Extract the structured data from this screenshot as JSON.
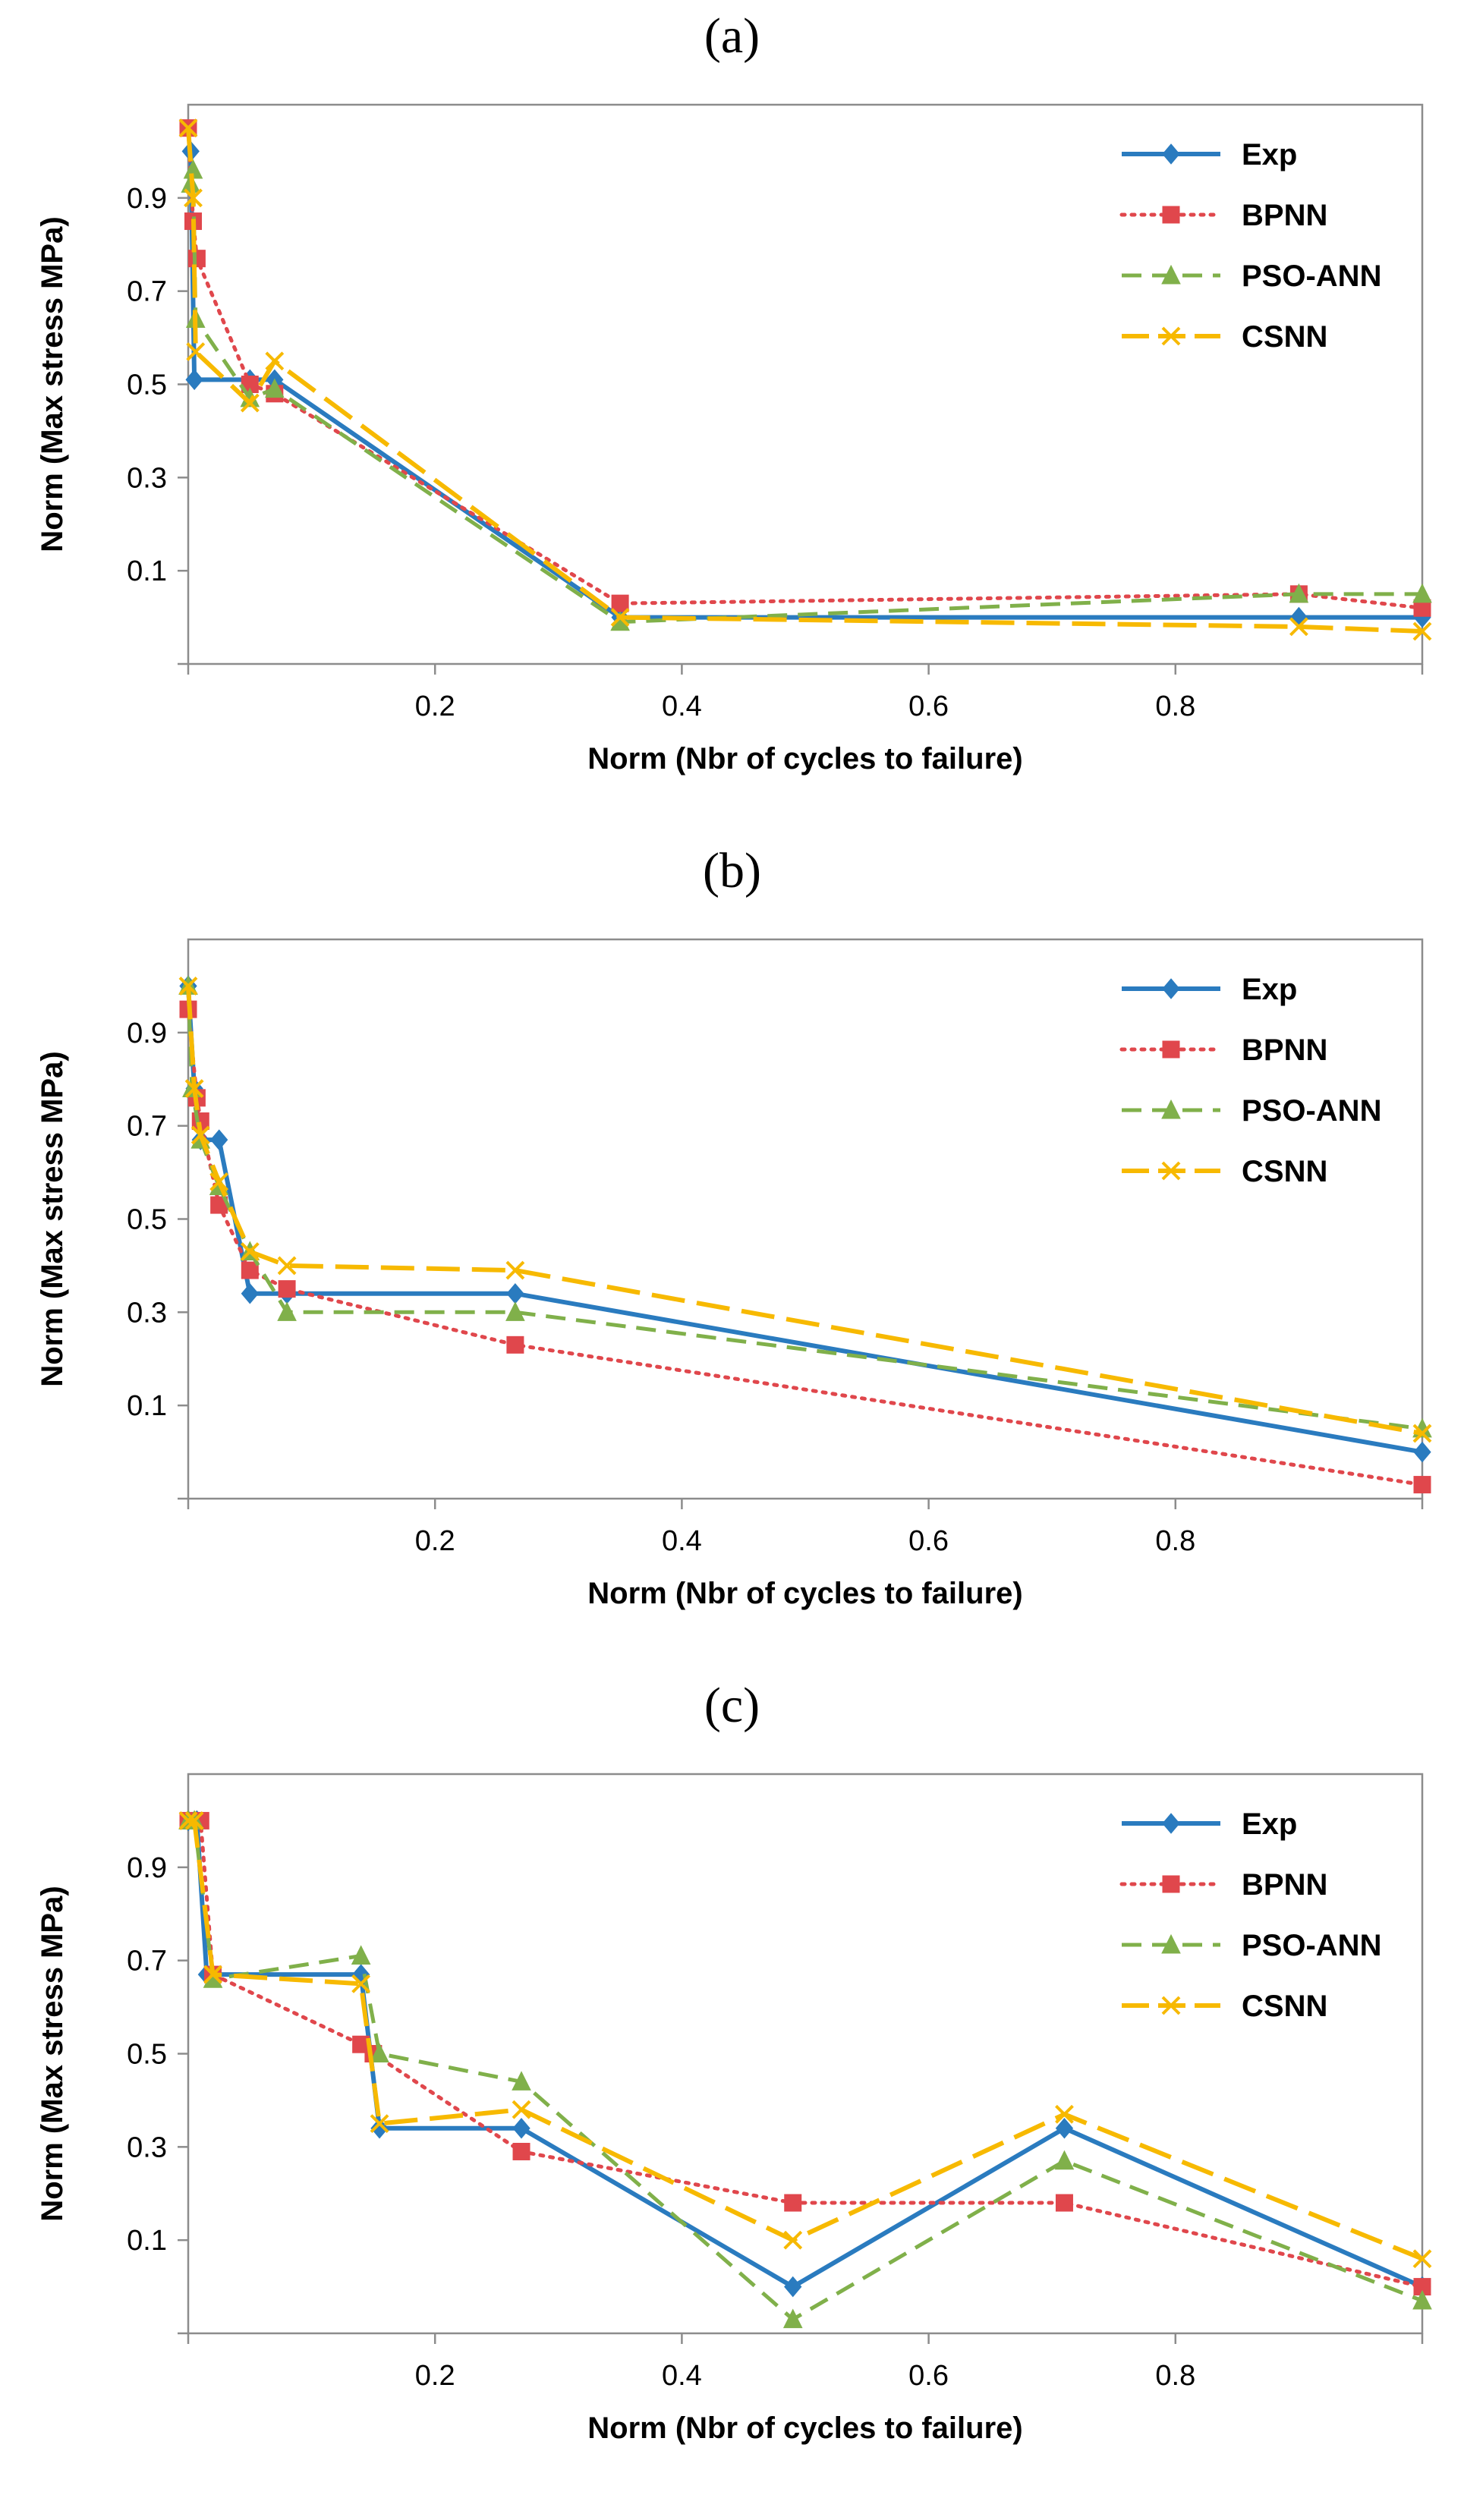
{
  "colors": {
    "Exp": "#2a7bbf",
    "BPNN": "#e0474c",
    "PSO-ANN": "#80b04a",
    "CSNN": "#f7b900"
  },
  "chart_data": [
    {
      "panel_label": "(a)",
      "type": "line",
      "xlabel": "Norm (Nbr of cycles to failure)",
      "ylabel": "Norm (Max stress MPa)",
      "xlim": [
        0,
        1
      ],
      "ylim": [
        -0.1,
        1.1
      ],
      "xticks": [
        "0.2",
        "0.4",
        "0.6",
        "0.8"
      ],
      "yticks": [
        "0.1",
        "0.3",
        "0.5",
        "0.7",
        "0.9"
      ],
      "legend_position": "top-right",
      "series": [
        {
          "name": "Exp",
          "x": [
            0.002,
            0.005,
            0.05,
            0.07,
            0.35,
            0.9,
            1.0
          ],
          "y": [
            1.0,
            0.51,
            0.51,
            0.51,
            0.0,
            0.0,
            0.0
          ]
        },
        {
          "name": "BPNN",
          "x": [
            0.0,
            0.004,
            0.007,
            0.05,
            0.07,
            0.35,
            0.9,
            1.0
          ],
          "y": [
            1.05,
            0.85,
            0.77,
            0.5,
            0.48,
            0.03,
            0.05,
            0.02
          ]
        },
        {
          "name": "PSO-ANN",
          "x": [
            0.002,
            0.004,
            0.006,
            0.05,
            0.07,
            0.35,
            0.9,
            1.0
          ],
          "y": [
            0.93,
            0.96,
            0.64,
            0.47,
            0.49,
            -0.01,
            0.05,
            0.05
          ]
        },
        {
          "name": "CSNN",
          "x": [
            0.0,
            0.004,
            0.006,
            0.05,
            0.07,
            0.35,
            0.9,
            1.0
          ],
          "y": [
            1.05,
            0.9,
            0.57,
            0.46,
            0.55,
            0.0,
            -0.02,
            -0.03
          ]
        }
      ]
    },
    {
      "panel_label": "(b)",
      "type": "line",
      "xlabel": "Norm (Nbr of cycles to failure)",
      "ylabel": "Norm (Max stress MPa)",
      "xlim": [
        0,
        1
      ],
      "ylim": [
        -0.1,
        1.1
      ],
      "xticks": [
        "0.2",
        "0.4",
        "0.6",
        "0.8"
      ],
      "yticks": [
        "0.1",
        "0.3",
        "0.5",
        "0.7",
        "0.9"
      ],
      "legend_position": "top-right",
      "series": [
        {
          "name": "Exp",
          "x": [
            0.0,
            0.005,
            0.01,
            0.025,
            0.05,
            0.08,
            0.265,
            1.0
          ],
          "y": [
            1.0,
            0.78,
            0.67,
            0.67,
            0.34,
            0.34,
            0.34,
            0.0
          ]
        },
        {
          "name": "BPNN",
          "x": [
            0.0,
            0.007,
            0.01,
            0.025,
            0.05,
            0.08,
            0.265,
            1.0
          ],
          "y": [
            0.95,
            0.76,
            0.71,
            0.53,
            0.39,
            0.35,
            0.23,
            -0.07
          ]
        },
        {
          "name": "PSO-ANN",
          "x": [
            0.0,
            0.003,
            0.01,
            0.025,
            0.05,
            0.08,
            0.265,
            1.0
          ],
          "y": [
            1.0,
            0.78,
            0.67,
            0.57,
            0.43,
            0.3,
            0.3,
            0.05
          ]
        },
        {
          "name": "CSNN",
          "x": [
            0.0,
            0.005,
            0.01,
            0.025,
            0.05,
            0.08,
            0.265,
            1.0
          ],
          "y": [
            1.0,
            0.78,
            0.68,
            0.58,
            0.43,
            0.4,
            0.39,
            0.04
          ]
        }
      ]
    },
    {
      "panel_label": "(c)",
      "type": "line",
      "xlabel": "Norm (Nbr of cycles to failure)",
      "ylabel": "Norm (Max stress MPa)",
      "xlim": [
        0,
        1
      ],
      "ylim": [
        -0.1,
        1.1
      ],
      "xticks": [
        "0.2",
        "0.4",
        "0.6",
        "0.8"
      ],
      "yticks": [
        "0.1",
        "0.3",
        "0.5",
        "0.7",
        "0.9"
      ],
      "legend_position": "top-right",
      "series": [
        {
          "name": "Exp",
          "x": [
            0.0,
            0.007,
            0.015,
            0.14,
            0.155,
            0.27,
            0.49,
            0.71,
            1.0
          ],
          "y": [
            1.0,
            1.0,
            0.67,
            0.67,
            0.34,
            0.34,
            0.0,
            0.34,
            0.0
          ]
        },
        {
          "name": "BPNN",
          "x": [
            0.0,
            0.01,
            0.02,
            0.14,
            0.15,
            0.27,
            0.49,
            0.71,
            1.0
          ],
          "y": [
            1.0,
            1.0,
            0.67,
            0.52,
            0.5,
            0.29,
            0.18,
            0.18,
            0.0
          ]
        },
        {
          "name": "PSO-ANN",
          "x": [
            0.0,
            0.005,
            0.02,
            0.14,
            0.155,
            0.27,
            0.49,
            0.71,
            1.0
          ],
          "y": [
            1.0,
            1.0,
            0.66,
            0.71,
            0.5,
            0.44,
            -0.07,
            0.27,
            -0.03
          ]
        },
        {
          "name": "CSNN",
          "x": [
            0.0,
            0.005,
            0.02,
            0.14,
            0.155,
            0.27,
            0.49,
            0.71,
            1.0
          ],
          "y": [
            1.0,
            1.0,
            0.67,
            0.65,
            0.35,
            0.38,
            0.1,
            0.37,
            0.06
          ]
        }
      ]
    }
  ]
}
